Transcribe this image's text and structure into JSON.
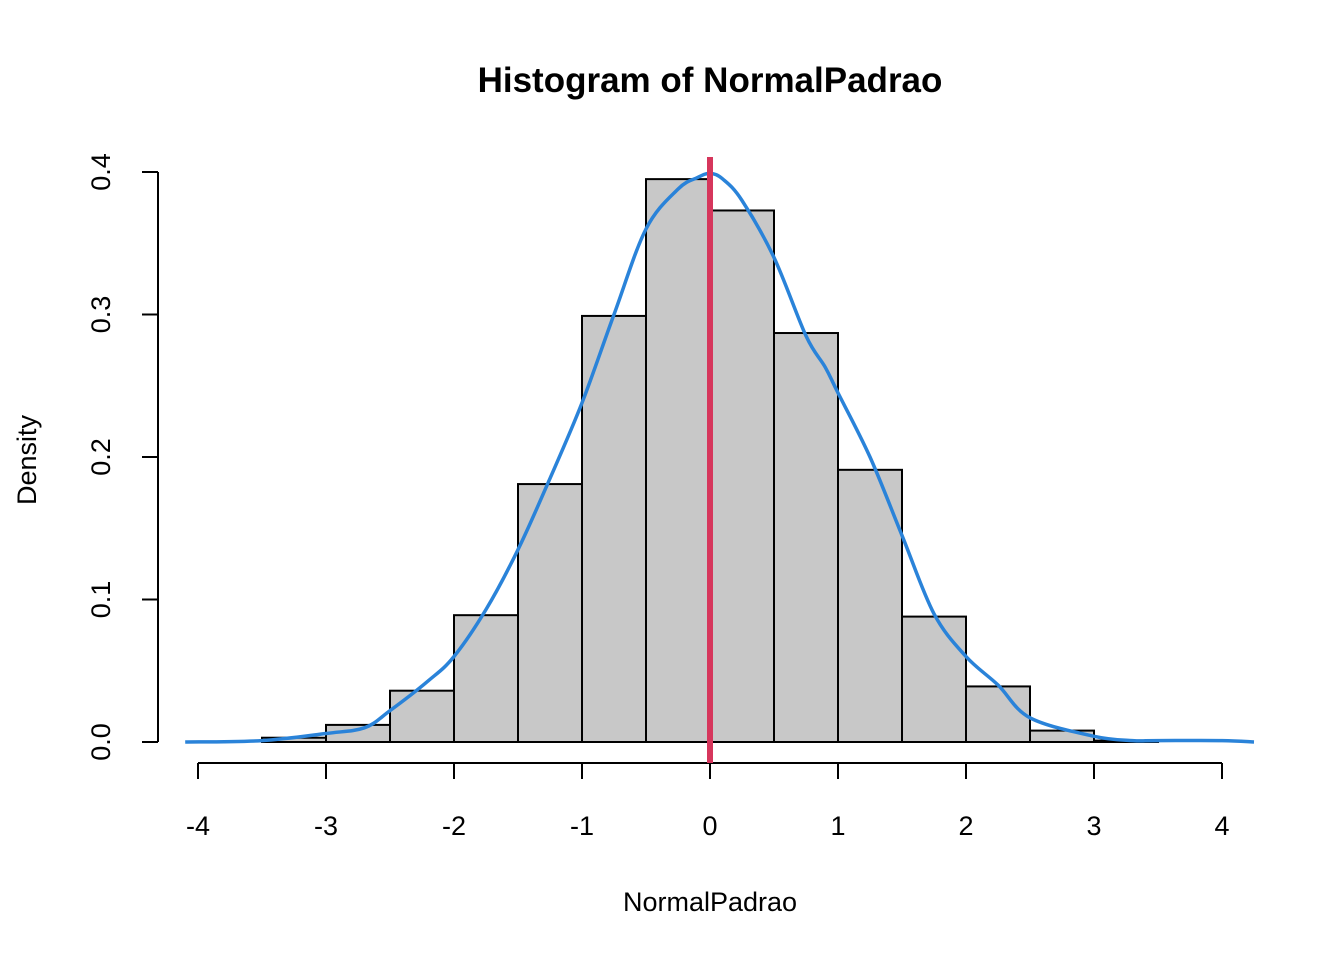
{
  "chart_data": {
    "type": "bar",
    "title": "Histogram of NormalPadrao",
    "xlabel": "NormalPadrao",
    "ylabel": "Density",
    "xlim": [
      -4.2,
      4.2
    ],
    "ylim": [
      0,
      0.42
    ],
    "x_ticks": [
      "-4",
      "-3",
      "-2",
      "-1",
      "0",
      "1",
      "2",
      "3",
      "4"
    ],
    "y_ticks": [
      "0.0",
      "0.1",
      "0.2",
      "0.3",
      "0.4"
    ],
    "grid": false,
    "bins": [
      {
        "from": -3.5,
        "to": -3.0,
        "density": 0.003
      },
      {
        "from": -3.0,
        "to": -2.5,
        "density": 0.012
      },
      {
        "from": -2.5,
        "to": -2.0,
        "density": 0.036
      },
      {
        "from": -2.0,
        "to": -1.5,
        "density": 0.089
      },
      {
        "from": -1.5,
        "to": -1.0,
        "density": 0.181
      },
      {
        "from": -1.0,
        "to": -0.5,
        "density": 0.299
      },
      {
        "from": -0.5,
        "to": 0.0,
        "density": 0.395
      },
      {
        "from": 0.0,
        "to": 0.5,
        "density": 0.373
      },
      {
        "from": 0.5,
        "to": 1.0,
        "density": 0.287
      },
      {
        "from": 1.0,
        "to": 1.5,
        "density": 0.191
      },
      {
        "from": 1.5,
        "to": 2.0,
        "density": 0.088
      },
      {
        "from": 2.0,
        "to": 2.5,
        "density": 0.039
      },
      {
        "from": 2.5,
        "to": 3.0,
        "density": 0.008
      },
      {
        "from": 3.0,
        "to": 3.5,
        "density": 0.001
      }
    ],
    "density_curve": {
      "color": "#2a83d9",
      "x": [
        -4.1,
        -3.5,
        -3.0,
        -2.7,
        -2.5,
        -2.2,
        -2.0,
        -1.75,
        -1.5,
        -1.25,
        -1.0,
        -0.75,
        -0.5,
        -0.25,
        -0.1,
        0.0,
        0.1,
        0.25,
        0.5,
        0.75,
        0.9,
        1.0,
        1.25,
        1.5,
        1.75,
        2.0,
        2.25,
        2.5,
        3.0,
        3.3,
        3.5,
        4.0,
        4.25
      ],
      "y": [
        0.0,
        0.001,
        0.006,
        0.01,
        0.022,
        0.043,
        0.06,
        0.093,
        0.135,
        0.185,
        0.238,
        0.3,
        0.36,
        0.388,
        0.396,
        0.399,
        0.395,
        0.38,
        0.34,
        0.285,
        0.263,
        0.245,
        0.2,
        0.145,
        0.09,
        0.06,
        0.04,
        0.017,
        0.004,
        0.001,
        0.001,
        0.001,
        0.0
      ]
    },
    "vertical_line": {
      "x": 0,
      "color": "#d6365c"
    }
  }
}
